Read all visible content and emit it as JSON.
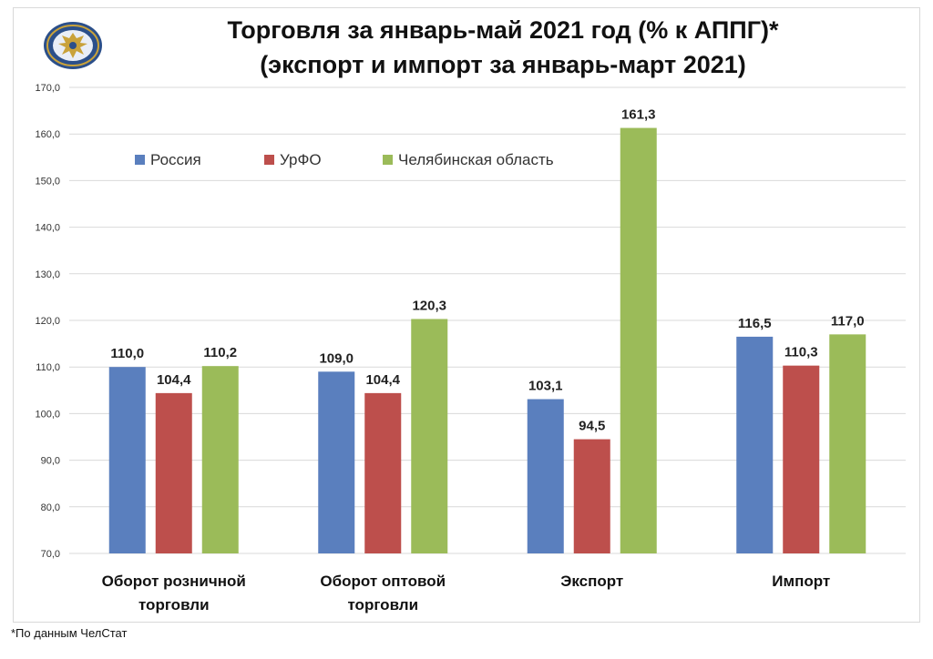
{
  "title_line1": "Торговля за январь-май 2021 год (% к АППГ)*",
  "title_line2": "(экспорт и импорт за январь-март 2021)",
  "footnote": "*По данным ЧелСтат",
  "colors": {
    "russia": "#5a7fbe",
    "urfo": "#bd4f4c",
    "chelyabinsk": "#9bbb59",
    "grid": "#d9d9d9"
  },
  "logo_icon": "emblem-icon",
  "chart_data": {
    "type": "bar",
    "categories": [
      [
        "Оборот розничной",
        "торговли"
      ],
      [
        "Оборот оптовой",
        "торговли"
      ],
      [
        "Экспорт"
      ],
      [
        "Импорт"
      ]
    ],
    "series": [
      {
        "name": "Россия",
        "color": "#5a7fbe",
        "values": [
          110.0,
          109.0,
          103.1,
          116.5
        ],
        "labels": [
          "110,0",
          "109,0",
          "103,1",
          "116,5"
        ]
      },
      {
        "name": "УрФО",
        "color": "#bd4f4c",
        "values": [
          104.4,
          104.4,
          94.5,
          110.3
        ],
        "labels": [
          "104,4",
          "104,4",
          "94,5",
          "110,3"
        ]
      },
      {
        "name": "Челябинская область",
        "color": "#9bbb59",
        "values": [
          110.2,
          120.3,
          161.3,
          117.0
        ],
        "labels": [
          "110,2",
          "120,3",
          "161,3",
          "117,0"
        ]
      }
    ],
    "ylim": [
      70,
      170
    ],
    "yticks": [
      "70,0",
      "80,0",
      "90,0",
      "100,0",
      "110,0",
      "120,0",
      "130,0",
      "140,0",
      "150,0",
      "160,0",
      "170,0"
    ],
    "grid": true,
    "legend_position": "top-left"
  }
}
